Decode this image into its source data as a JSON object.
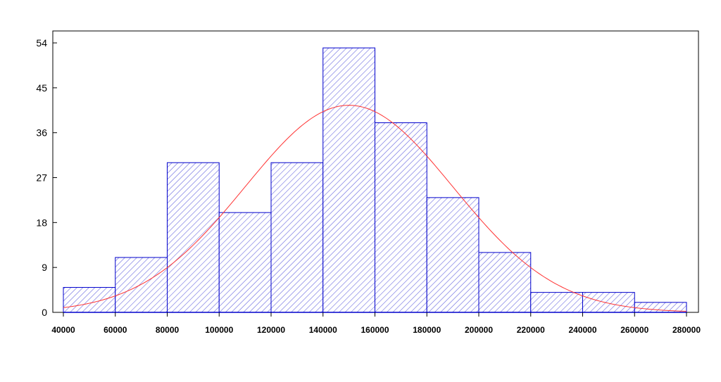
{
  "chart_data": {
    "type": "bar",
    "subtype": "histogram",
    "title": "",
    "xlabel": "",
    "ylabel": "",
    "bin_edges": [
      40000,
      60000,
      80000,
      100000,
      120000,
      140000,
      160000,
      180000,
      200000,
      220000,
      240000,
      260000,
      280000
    ],
    "values": [
      5,
      11,
      30,
      20,
      30,
      53,
      38,
      23,
      12,
      4,
      4,
      2
    ],
    "xlim": [
      40000,
      280000
    ],
    "ylim": [
      0,
      56
    ],
    "x_ticks": [
      40000,
      60000,
      80000,
      100000,
      120000,
      140000,
      160000,
      180000,
      200000,
      220000,
      240000,
      260000,
      280000
    ],
    "x_tick_labels": [
      "40000",
      "60000",
      "80000",
      "100000",
      "120000",
      "140000",
      "160000",
      "180000",
      "200000",
      "220000",
      "240000",
      "260000",
      "280000"
    ],
    "y_ticks": [
      0,
      9,
      18,
      27,
      36,
      45,
      54
    ],
    "y_tick_labels": [
      "0",
      "9",
      "18",
      "27",
      "36",
      "45",
      "54"
    ],
    "fill": "hatched",
    "bar_color": "#0000cc",
    "hatch_color": "#6a6ae0",
    "grid": false,
    "legend": "none",
    "normal_fit": {
      "type": "line",
      "mean": 150000,
      "sd": 40000,
      "peak": 41.5,
      "color": "#ff3333"
    }
  }
}
